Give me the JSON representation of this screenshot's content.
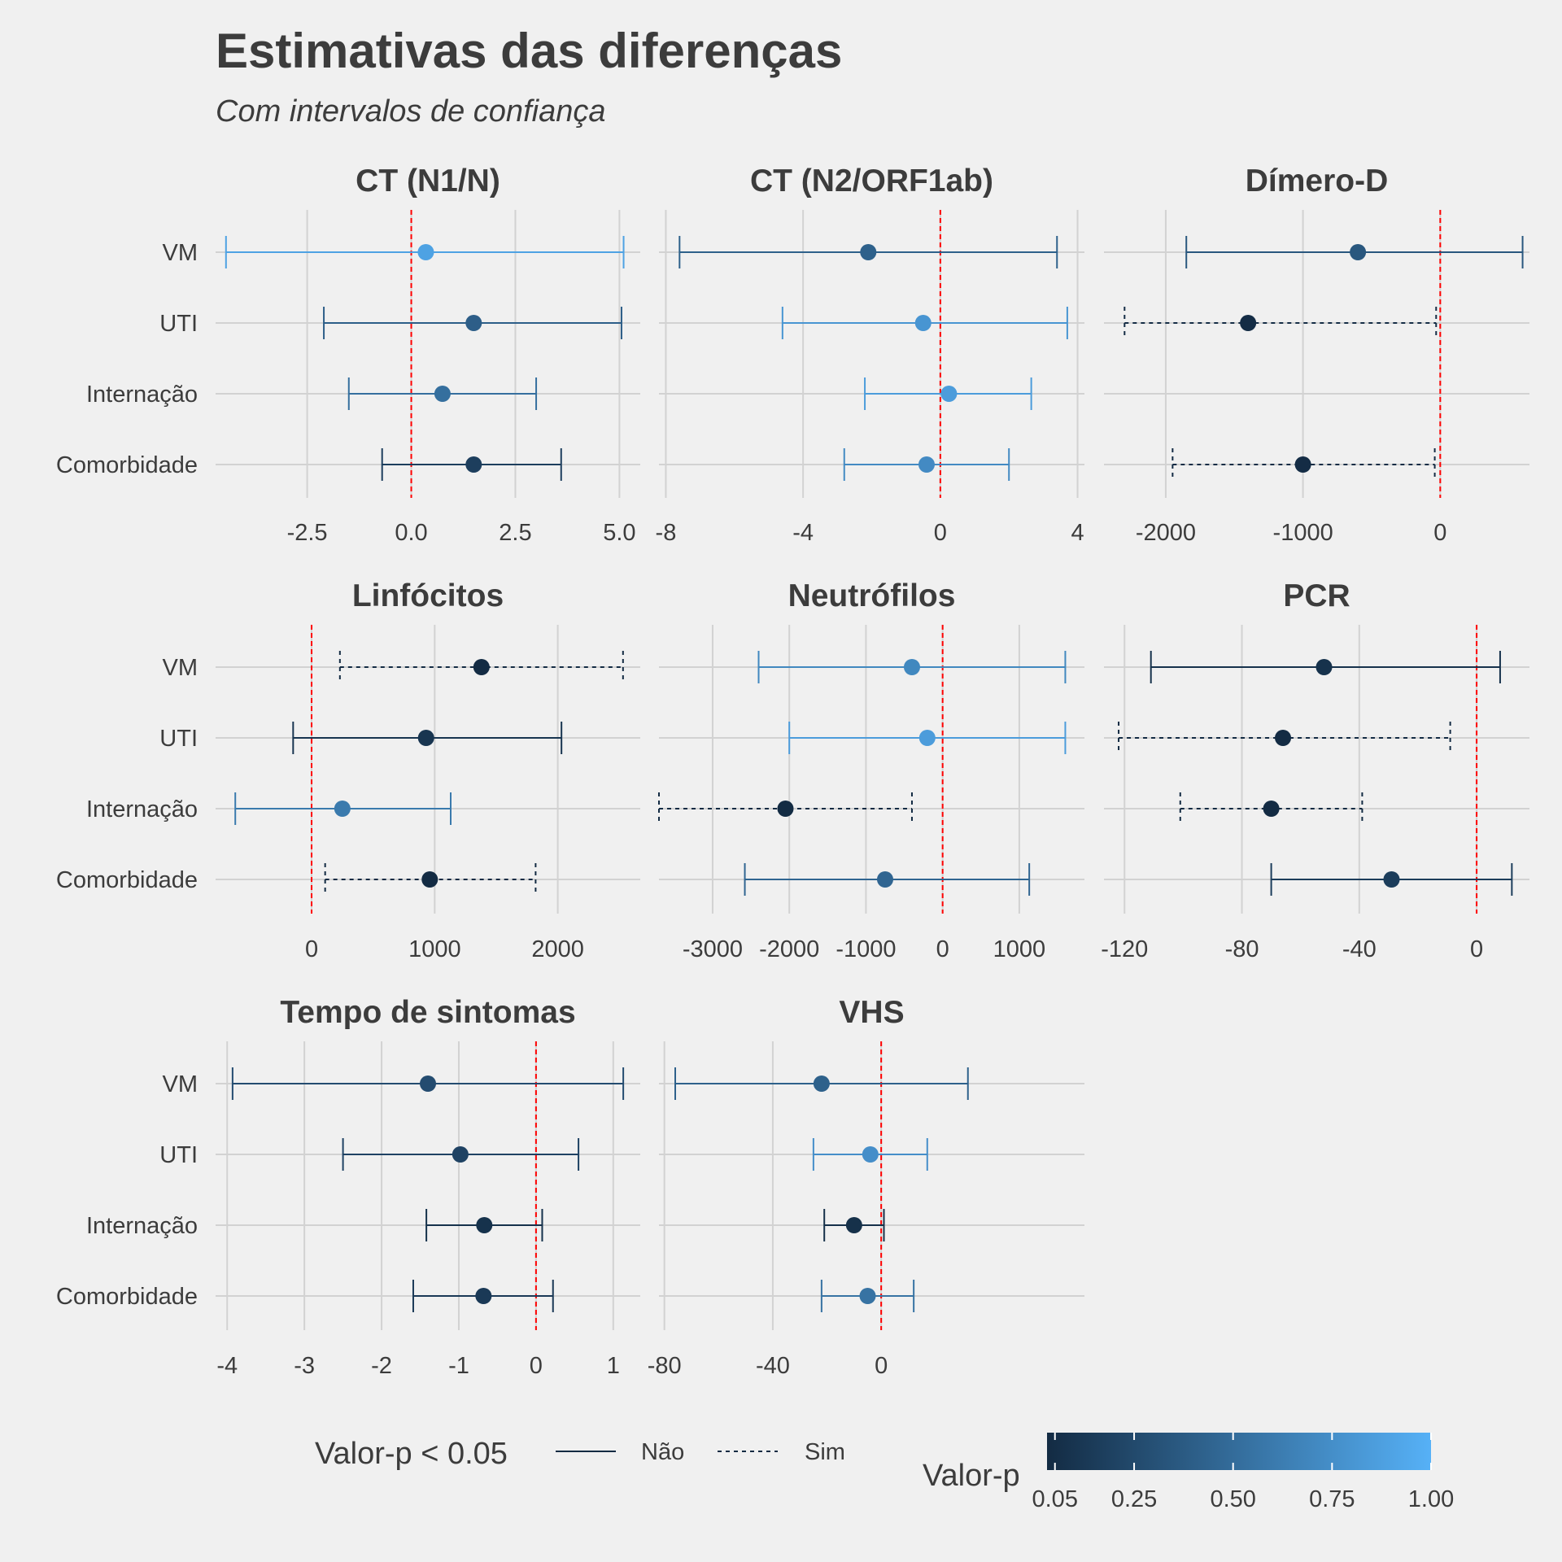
{
  "chart_data": {
    "type": "forest",
    "title": "Estimativas das diferenças",
    "subtitle": "Com intervalos de confiança",
    "categories": [
      "VM",
      "UTI",
      "Internação",
      "Comorbidade"
    ],
    "reference_line": 0,
    "colors": {
      "low_pvalue": "#132b43",
      "high_pvalue": "#56b1f7",
      "reference_line": "#ff0000",
      "grid": "#d2d2d2",
      "background": "#f0f0f0"
    },
    "panels": [
      {
        "title": "CT (N1/N)",
        "xlim": [
          -4.7,
          5.5
        ],
        "ticks": [
          -2.5,
          0,
          2.5,
          5
        ],
        "tick_labels": [
          "-2.5",
          "0.0",
          "2.5",
          "5.0"
        ],
        "rows": [
          {
            "category": "VM",
            "estimate": 0.35,
            "lower": -4.45,
            "upper": 5.1,
            "p_value": 0.89,
            "significant": "Não"
          },
          {
            "category": "UTI",
            "estimate": 1.5,
            "lower": -2.1,
            "upper": 5.05,
            "p_value": 0.4,
            "significant": "Não"
          },
          {
            "category": "Internação",
            "estimate": 0.75,
            "lower": -1.5,
            "upper": 3.0,
            "p_value": 0.52,
            "significant": "Não"
          },
          {
            "category": "Comorbidade",
            "estimate": 1.5,
            "lower": -0.7,
            "upper": 3.6,
            "p_value": 0.17,
            "significant": "Não"
          }
        ]
      },
      {
        "title": "CT (N2/ORF1ab)",
        "xlim": [
          -8.2,
          4.2
        ],
        "ticks": [
          -8,
          -4,
          0,
          4
        ],
        "tick_labels": [
          "-8",
          "-4",
          "0",
          "4"
        ],
        "rows": [
          {
            "category": "VM",
            "estimate": -2.1,
            "lower": -7.6,
            "upper": 3.4,
            "p_value": 0.42,
            "significant": "Não"
          },
          {
            "category": "UTI",
            "estimate": -0.5,
            "lower": -4.6,
            "upper": 3.7,
            "p_value": 0.8,
            "significant": "Não"
          },
          {
            "category": "Internação",
            "estimate": 0.25,
            "lower": -2.2,
            "upper": 2.65,
            "p_value": 0.85,
            "significant": "Não"
          },
          {
            "category": "Comorbidade",
            "estimate": -0.4,
            "lower": -2.8,
            "upper": 2.0,
            "p_value": 0.72,
            "significant": "Não"
          }
        ]
      },
      {
        "title": "Dímero-D",
        "xlim": [
          -2450,
          650
        ],
        "ticks": [
          -2000,
          -1000,
          0
        ],
        "tick_labels": [
          "-2000",
          "-1000",
          "0"
        ],
        "rows": [
          {
            "category": "VM",
            "estimate": -600,
            "lower": -1850,
            "upper": 600,
            "p_value": 0.35,
            "significant": "Não"
          },
          {
            "category": "UTI",
            "estimate": -1400,
            "lower": -2300,
            "upper": -30,
            "p_value": 0.04,
            "significant": "Sim"
          },
          {
            "category": "Comorbidade",
            "estimate": -1000,
            "lower": -1950,
            "upper": -40,
            "p_value": 0.04,
            "significant": "Sim"
          }
        ]
      },
      {
        "title": "Linfócitos",
        "xlim": [
          -780,
          2670
        ],
        "ticks": [
          0,
          1000,
          2000
        ],
        "tick_labels": [
          "0",
          "1000",
          "2000"
        ],
        "rows": [
          {
            "category": "VM",
            "estimate": 1380,
            "lower": 230,
            "upper": 2530,
            "p_value": 0.02,
            "significant": "Sim"
          },
          {
            "category": "UTI",
            "estimate": 930,
            "lower": -150,
            "upper": 2030,
            "p_value": 0.1,
            "significant": "Não"
          },
          {
            "category": "Internação",
            "estimate": 250,
            "lower": -620,
            "upper": 1130,
            "p_value": 0.6,
            "significant": "Não"
          },
          {
            "category": "Comorbidade",
            "estimate": 960,
            "lower": 110,
            "upper": 1820,
            "p_value": 0.03,
            "significant": "Sim"
          }
        ]
      },
      {
        "title": "Neutrófilos",
        "xlim": [
          -3700,
          1850
        ],
        "ticks": [
          -3000,
          -2000,
          -1000,
          0,
          1000
        ],
        "tick_labels": [
          "-3000",
          "-2000",
          "-1000",
          "0",
          "1000"
        ],
        "rows": [
          {
            "category": "VM",
            "estimate": -400,
            "lower": -2400,
            "upper": 1600,
            "p_value": 0.7,
            "significant": "Não"
          },
          {
            "category": "UTI",
            "estimate": -200,
            "lower": -2000,
            "upper": 1600,
            "p_value": 0.85,
            "significant": "Não"
          },
          {
            "category": "Internação",
            "estimate": -2050,
            "lower": -3700,
            "upper": -400,
            "p_value": 0.02,
            "significant": "Sim"
          },
          {
            "category": "Comorbidade",
            "estimate": -750,
            "lower": -2580,
            "upper": 1130,
            "p_value": 0.45,
            "significant": "Não"
          }
        ]
      },
      {
        "title": "PCR",
        "xlim": [
          -127,
          18
        ],
        "ticks": [
          -120,
          -80,
          -40,
          0
        ],
        "tick_labels": [
          "-120",
          "-80",
          "-40",
          "0"
        ],
        "rows": [
          {
            "category": "VM",
            "estimate": -52,
            "lower": -111,
            "upper": 8,
            "p_value": 0.08,
            "significant": "Não"
          },
          {
            "category": "UTI",
            "estimate": -66,
            "lower": -122,
            "upper": -9,
            "p_value": 0.03,
            "significant": "Sim"
          },
          {
            "category": "Internação",
            "estimate": -70,
            "lower": -101,
            "upper": -39,
            "p_value": 0.01,
            "significant": "Sim"
          },
          {
            "category": "Comorbidade",
            "estimate": -29,
            "lower": -70,
            "upper": 12,
            "p_value": 0.16,
            "significant": "Não"
          }
        ]
      },
      {
        "title": "Tempo de sintomas",
        "xlim": [
          -4.15,
          1.35
        ],
        "ticks": [
          -4,
          -3,
          -2,
          -1,
          0,
          1
        ],
        "tick_labels": [
          "-4",
          "-3",
          "-2",
          "-1",
          "0",
          "1"
        ],
        "rows": [
          {
            "category": "VM",
            "estimate": -1.4,
            "lower": -3.93,
            "upper": 1.13,
            "p_value": 0.27,
            "significant": "Não"
          },
          {
            "category": "UTI",
            "estimate": -0.98,
            "lower": -2.5,
            "upper": 0.55,
            "p_value": 0.2,
            "significant": "Não"
          },
          {
            "category": "Internação",
            "estimate": -0.67,
            "lower": -1.42,
            "upper": 0.08,
            "p_value": 0.08,
            "significant": "Não"
          },
          {
            "category": "Comorbidade",
            "estimate": -0.68,
            "lower": -1.59,
            "upper": 0.22,
            "p_value": 0.13,
            "significant": "Não"
          }
        ]
      },
      {
        "title": "VHS",
        "xlim": [
          -82,
          75
        ],
        "ticks": [
          -80,
          -40,
          0
        ],
        "tick_labels": [
          "-80",
          "-40",
          "0"
        ],
        "rows": [
          {
            "category": "VM",
            "estimate": -22,
            "lower": -76,
            "upper": 32,
            "p_value": 0.42,
            "significant": "Não"
          },
          {
            "category": "UTI",
            "estimate": -4,
            "lower": -25,
            "upper": 17,
            "p_value": 0.75,
            "significant": "Não"
          },
          {
            "category": "Internação",
            "estimate": -10,
            "lower": -21,
            "upper": 1,
            "p_value": 0.07,
            "significant": "Não"
          },
          {
            "category": "Comorbidade",
            "estimate": -5,
            "lower": -22,
            "upper": 12,
            "p_value": 0.55,
            "significant": "Não"
          }
        ]
      }
    ],
    "legend": {
      "linetype": {
        "title": "Valor-p < 0.05",
        "items": [
          {
            "label": "Não",
            "style": "solid"
          },
          {
            "label": "Sim",
            "style": "dashed"
          }
        ]
      },
      "color": {
        "title": "Valor-p",
        "range": [
          0.03,
          1.0
        ],
        "ticks": [
          0.05,
          0.25,
          0.5,
          0.75,
          1.0
        ],
        "tick_labels": [
          "0.05",
          "0.25",
          "0.50",
          "0.75",
          "1.00"
        ]
      }
    }
  }
}
